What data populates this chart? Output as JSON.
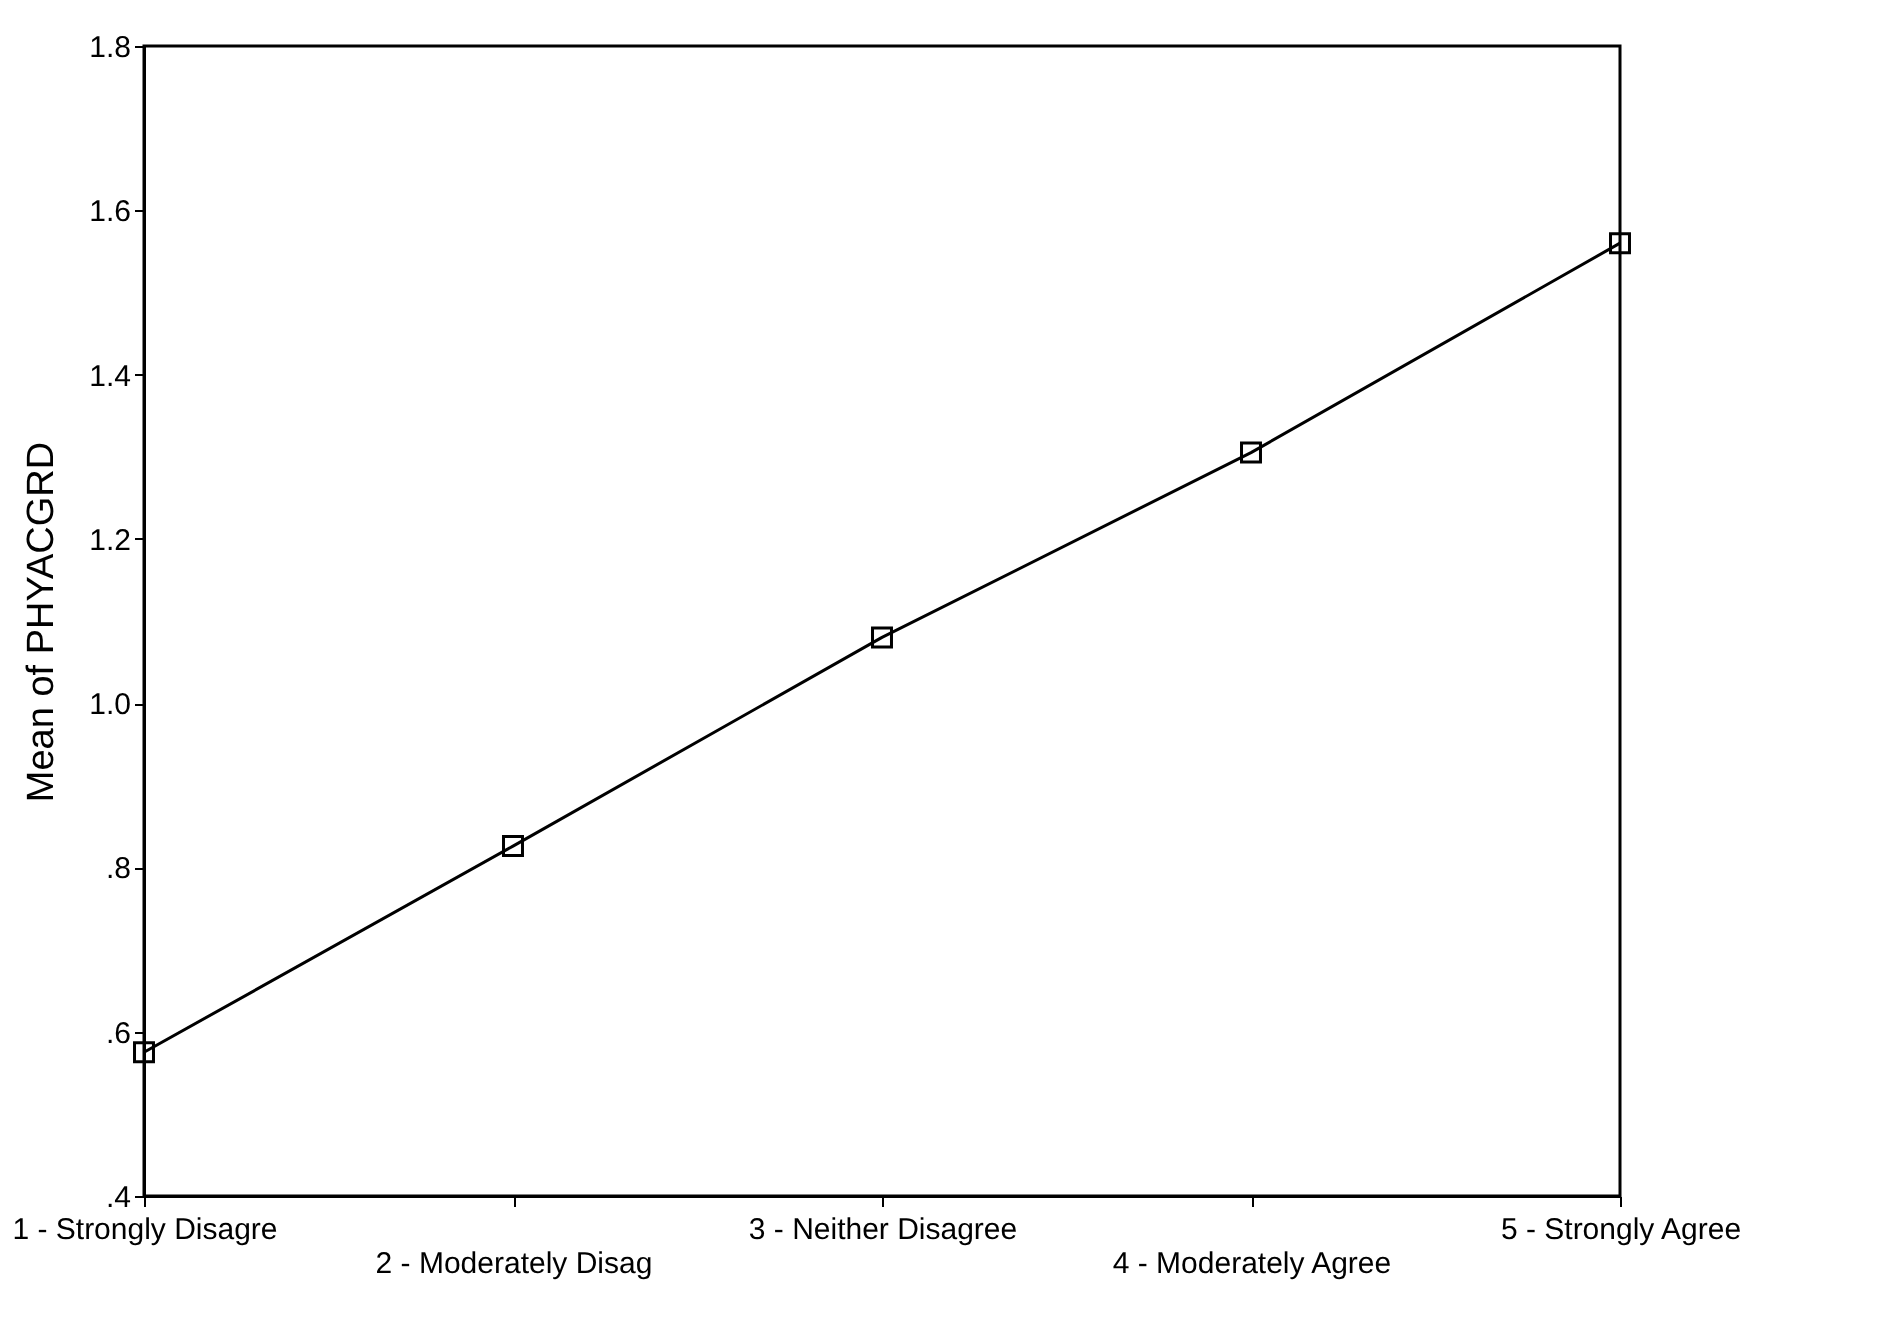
{
  "chart_data": {
    "type": "line",
    "categories": [
      "1 - Strongly Disagre",
      "2 - Moderately Disag",
      "3 - Neither Disagree",
      "4 - Moderately Agree",
      "5 - Strongly Agree"
    ],
    "values": [
      0.575,
      0.826,
      1.08,
      1.305,
      1.56
    ],
    "color": "#000000",
    "ylabel": "Mean of PHYACGRD",
    "ylim": [
      0.4,
      1.8
    ],
    "yticks": [
      {
        "value": 0.4,
        "label": ".4"
      },
      {
        "value": 0.6,
        "label": ".6"
      },
      {
        "value": 0.8,
        "label": ".8"
      },
      {
        "value": 1.0,
        "label": "1.0"
      },
      1.2,
      1.4,
      1.6,
      1.8
    ],
    "marker": "square",
    "line_style": "solid",
    "grid": false
  }
}
